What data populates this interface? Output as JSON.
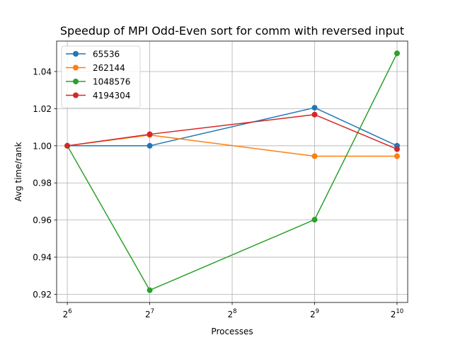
{
  "chart_data": {
    "type": "line",
    "title": "Speedup of MPI Odd-Even sort for comm with reversed input",
    "xlabel": "Processes",
    "ylabel": "Avg time/rank",
    "x_scale": "log2",
    "x": [
      64,
      128,
      512,
      1024
    ],
    "x_ticks": [
      {
        "value": 64,
        "base": "2",
        "exp": "6"
      },
      {
        "value": 128,
        "base": "2",
        "exp": "7"
      },
      {
        "value": 256,
        "base": "2",
        "exp": "8"
      },
      {
        "value": 512,
        "base": "2",
        "exp": "9"
      },
      {
        "value": 1024,
        "base": "2",
        "exp": "10"
      }
    ],
    "xlim": [
      58.5,
      1120
    ],
    "ylim": [
      0.9156,
      1.0564
    ],
    "y_ticks": [
      0.92,
      0.94,
      0.96,
      0.98,
      1.0,
      1.02,
      1.04
    ],
    "y_tick_labels": [
      "0.92",
      "0.94",
      "0.96",
      "0.98",
      "1.00",
      "1.02",
      "1.04"
    ],
    "grid": true,
    "legend_position": "top-left",
    "series": [
      {
        "name": "65536",
        "color": "#1f77b4",
        "values": [
          1.0,
          1.0,
          1.0205,
          1.0
        ]
      },
      {
        "name": "262144",
        "color": "#ff7f0e",
        "values": [
          1.0,
          1.0058,
          0.9944,
          0.9944
        ]
      },
      {
        "name": "1048576",
        "color": "#2ca02c",
        "values": [
          1.0,
          0.9222,
          0.9602,
          1.0498
        ]
      },
      {
        "name": "4194304",
        "color": "#d62728",
        "values": [
          1.0,
          1.0062,
          1.0168,
          0.9982
        ]
      }
    ]
  }
}
